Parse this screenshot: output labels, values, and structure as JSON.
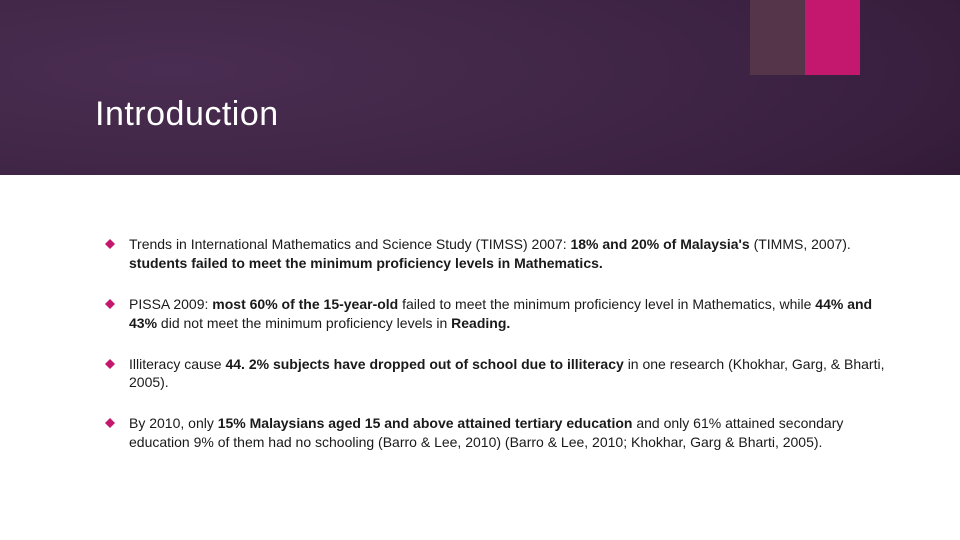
{
  "slide": {
    "title": "Introduction",
    "header": {
      "gradient_start": "#4a2d52",
      "gradient_mid": "#3a2040",
      "gradient_end": "#1a0d1e",
      "accent_dark": "#54354a",
      "accent_pink": "#c4186f",
      "title_color": "#ffffff",
      "title_fontsize": 34
    },
    "body": {
      "bullet_color": "#c4186f",
      "text_color": "#1a1a1a",
      "fontsize": 14,
      "line_height": 1.35
    },
    "bullets": [
      {
        "segments": [
          {
            "t": "Trends in International Mathematics and Science Study (TIMSS) 2007: ",
            "b": false
          },
          {
            "t": "18% and 20% of Malaysia's ",
            "b": true
          },
          {
            "t": "(TIMMS, 2007). ",
            "b": false
          },
          {
            "t": "students failed to meet the minimum proficiency levels in Mathematics.",
            "b": true
          }
        ]
      },
      {
        "segments": [
          {
            "t": "PISSA 2009: ",
            "b": false
          },
          {
            "t": "most 60% of the 15-year-old ",
            "b": true
          },
          {
            "t": "failed to meet the minimum proficiency level in Mathematics, while ",
            "b": false
          },
          {
            "t": "44% and 43% ",
            "b": true
          },
          {
            "t": "did not meet the minimum proficiency levels in ",
            "b": false
          },
          {
            "t": "Reading.",
            "b": true
          }
        ]
      },
      {
        "segments": [
          {
            "t": "Illiteracy cause ",
            "b": false
          },
          {
            "t": "44. 2% subjects have dropped out of school  due to illiteracy ",
            "b": true
          },
          {
            "t": "in one research (Khokhar, Garg, & Bharti, 2005).",
            "b": false
          }
        ]
      },
      {
        "segments": [
          {
            "t": "By 2010, only ",
            "b": false
          },
          {
            "t": "15% Malaysians aged 15 and above attained tertiary education ",
            "b": true
          },
          {
            "t": "and only 61% attained secondary education 9% of them had no schooling (Barro & Lee, 2010) (Barro & Lee, 2010; Khokhar, Garg & Bharti, 2005).",
            "b": false
          }
        ]
      }
    ]
  }
}
